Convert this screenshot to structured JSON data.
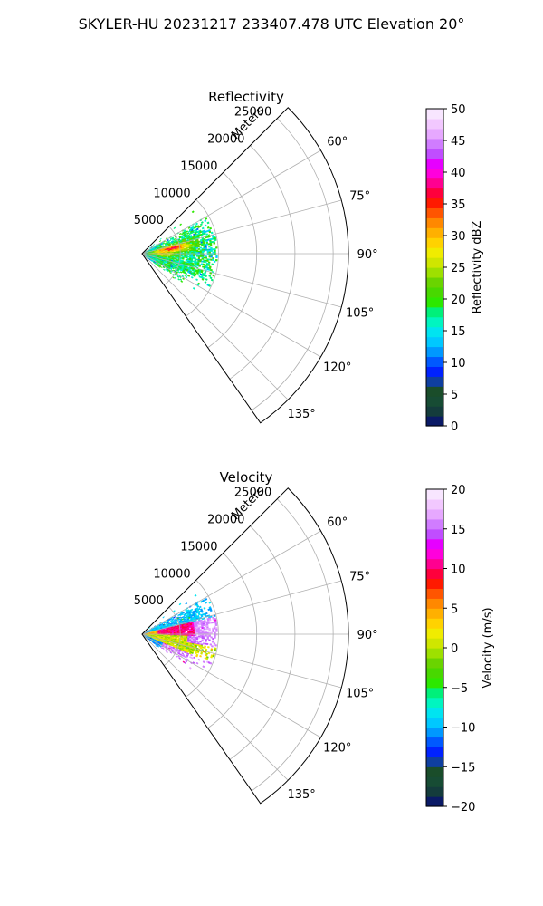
{
  "figure": {
    "suptitle": "SKYLER-HU  20231217  233407.478 UTC Elevation 20°"
  },
  "chart_data": [
    {
      "type": "heatmap",
      "subtype": "polar-sector-radar-ppi",
      "title": "Reflectivity",
      "radial_label": "Meters",
      "radial_ticks": [
        5000,
        10000,
        15000,
        20000,
        25000
      ],
      "radial_tick_labels": [
        "5000",
        "10000",
        "15000",
        "20000",
        "25000"
      ],
      "rlim": [
        0,
        27000
      ],
      "theta_ticks_deg": [
        60,
        75,
        90,
        105,
        120,
        135
      ],
      "theta_tick_labels": [
        "60°",
        "75°",
        "90°",
        "105°",
        "120°",
        "135°"
      ],
      "theta_range_deg": [
        45,
        145
      ],
      "grid": true,
      "colorbar": {
        "label": "Reflectivity dBZ",
        "range": [
          0,
          50
        ],
        "ticks": [
          0,
          5,
          10,
          15,
          20,
          25,
          30,
          35,
          40,
          45,
          50
        ],
        "tick_labels": [
          "0",
          "5",
          "10",
          "15",
          "20",
          "25",
          "30",
          "35",
          "40",
          "45",
          "50"
        ],
        "colors": [
          "#0a1a66",
          "#143c3c",
          "#174c34",
          "#1a4d2a",
          "#0f3fa0",
          "#0022ff",
          "#0059ff",
          "#0098ff",
          "#00c8ff",
          "#00e4f0",
          "#00f5c0",
          "#00f07a",
          "#2ce800",
          "#48d800",
          "#6ad400",
          "#9ee000",
          "#cfe600",
          "#f0ec00",
          "#ffd200",
          "#ffb000",
          "#ff8800",
          "#ff5500",
          "#ff1a00",
          "#ff003c",
          "#ff0090",
          "#ff00dc",
          "#e600ff",
          "#c04dff",
          "#d07cff",
          "#e6a8ff",
          "#f2c8ff",
          "#f8e6ff"
        ]
      },
      "echo_summary": "Echo cluster mostly 12-25 dBZ (cyan to green) between about 70° and 105° out to roughly 9000 m, with embedded 25-35 dBZ (yellow/orange/red) pockets near 80-90° at 3000-6000 m."
    },
    {
      "type": "heatmap",
      "subtype": "polar-sector-radar-ppi",
      "title": "Velocity",
      "radial_label": "Meters",
      "radial_ticks": [
        5000,
        10000,
        15000,
        20000,
        25000
      ],
      "radial_tick_labels": [
        "5000",
        "10000",
        "15000",
        "20000",
        "25000"
      ],
      "rlim": [
        0,
        27000
      ],
      "theta_ticks_deg": [
        60,
        75,
        90,
        105,
        120,
        135
      ],
      "theta_tick_labels": [
        "60°",
        "75°",
        "90°",
        "105°",
        "120°",
        "135°"
      ],
      "theta_range_deg": [
        45,
        145
      ],
      "grid": true,
      "colorbar": {
        "label": "Velocity (m/s)",
        "range": [
          -20,
          20
        ],
        "ticks": [
          -20,
          -15,
          -10,
          -5,
          0,
          5,
          10,
          15,
          20
        ],
        "tick_labels": [
          "−20",
          "−15",
          "−10",
          "−5",
          "0",
          "5",
          "10",
          "15",
          "20"
        ],
        "colors": [
          "#0a1a66",
          "#143c3c",
          "#174c34",
          "#1a4d2a",
          "#0f3fa0",
          "#0022ff",
          "#0059ff",
          "#0098ff",
          "#00c8ff",
          "#00e4f0",
          "#00f5c0",
          "#00f07a",
          "#2ce800",
          "#48d800",
          "#6ad400",
          "#9ee000",
          "#cfe600",
          "#f0ec00",
          "#ffd200",
          "#ffb000",
          "#ff8800",
          "#ff5500",
          "#ff1a00",
          "#ff003c",
          "#ff0090",
          "#ff00dc",
          "#e600ff",
          "#c04dff",
          "#d07cff",
          "#e6a8ff",
          "#f2c8ff",
          "#f8e6ff"
        ]
      },
      "echo_summary": "Inbound (cyan, about -12 m/s) returns near 65-75°, a red/orange band of +5 to +12 m/s near 80-90°, magenta (+15 m/s) on the outer edge near 80-95°, and yellow-green (0 to -5 m/s) near 90-110°."
    }
  ]
}
